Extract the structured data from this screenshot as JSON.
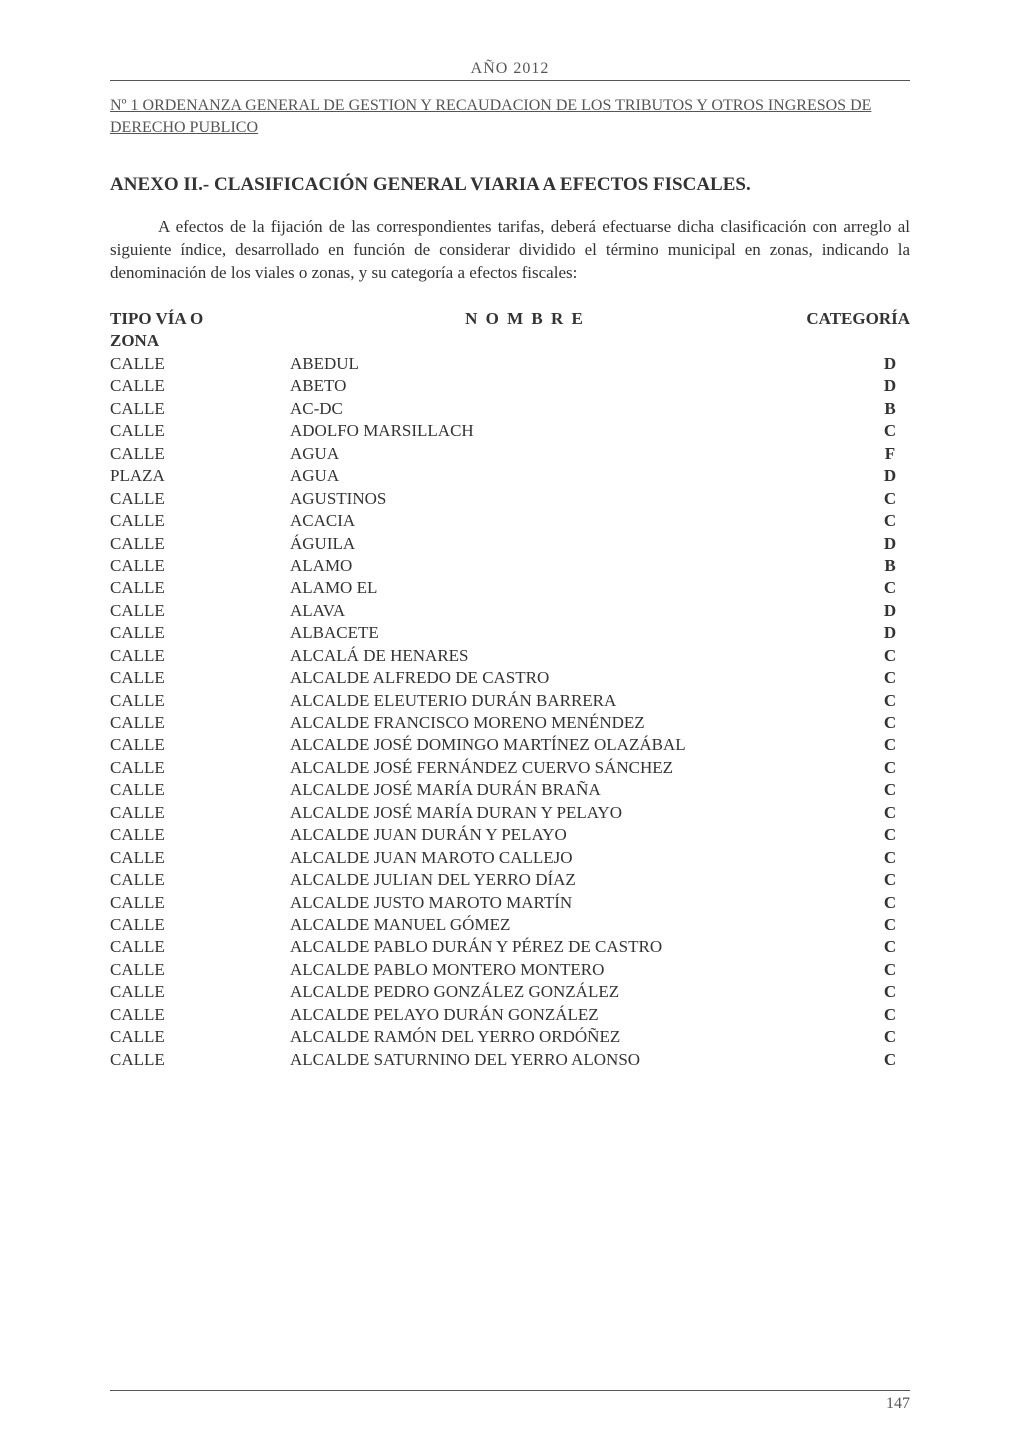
{
  "document": {
    "year_line": "AÑO 2012",
    "ordinance_header": "Nº 1    ORDENANZA GENERAL DE GESTION Y RECAUDACION DE LOS TRIBUTOS Y OTROS INGRESOS DE DERECHO PUBLICO",
    "annex_title": "ANEXO II.- CLASIFICACIÓN GENERAL VIARIA A EFECTOS FISCALES.",
    "intro_text": "A efectos de la fijación de las correspondientes tarifas, deberá efectuarse dicha clasificación con arreglo al siguiente índice, desarrollado en función de considerar dividido el término municipal en zonas, indicando la denominación de los viales o zonas, y su categoría a efectos fiscales:",
    "headers": {
      "tipo": "TIPO VÍA O",
      "zona": "ZONA",
      "nombre": "N O M B R E",
      "categoria": "CATEGORÍA"
    },
    "rows": [
      {
        "tipo": "CALLE",
        "nombre": "ABEDUL",
        "cat": "D"
      },
      {
        "tipo": "CALLE",
        "nombre": "ABETO",
        "cat": "D"
      },
      {
        "tipo": "CALLE",
        "nombre": "AC-DC",
        "cat": "B"
      },
      {
        "tipo": "CALLE",
        "nombre": "ADOLFO MARSILLACH",
        "cat": "C"
      },
      {
        "tipo": "CALLE",
        "nombre": "AGUA",
        "cat": "F"
      },
      {
        "tipo": "PLAZA",
        "nombre": "AGUA",
        "cat": "D"
      },
      {
        "tipo": "CALLE",
        "nombre": "AGUSTINOS",
        "cat": "C"
      },
      {
        "tipo": "CALLE",
        "nombre": "ACACIA",
        "cat": "C"
      },
      {
        "tipo": "CALLE",
        "nombre": "ÁGUILA",
        "cat": "D"
      },
      {
        "tipo": "CALLE",
        "nombre": "ALAMO",
        "cat": "B"
      },
      {
        "tipo": "CALLE",
        "nombre": "ALAMO EL",
        "cat": "C"
      },
      {
        "tipo": "CALLE",
        "nombre": "ALAVA",
        "cat": "D"
      },
      {
        "tipo": "CALLE",
        "nombre": "ALBACETE",
        "cat": "D"
      },
      {
        "tipo": "CALLE",
        "nombre": "ALCALÁ DE HENARES",
        "cat": "C"
      },
      {
        "tipo": "CALLE",
        "nombre": "ALCALDE ALFREDO DE CASTRO",
        "cat": "C"
      },
      {
        "tipo": "CALLE",
        "nombre": "ALCALDE ELEUTERIO DURÁN BARRERA",
        "cat": "C"
      },
      {
        "tipo": "CALLE",
        "nombre": "ALCALDE FRANCISCO MORENO MENÉNDEZ",
        "cat": "C"
      },
      {
        "tipo": "CALLE",
        "nombre": "ALCALDE JOSÉ DOMINGO MARTÍNEZ OLAZÁBAL",
        "cat": "C"
      },
      {
        "tipo": "CALLE",
        "nombre": "ALCALDE JOSÉ FERNÁNDEZ CUERVO SÁNCHEZ",
        "cat": "C"
      },
      {
        "tipo": "CALLE",
        "nombre": "ALCALDE JOSÉ MARÍA DURÁN BRAÑA",
        "cat": "C"
      },
      {
        "tipo": "CALLE",
        "nombre": "ALCALDE JOSÉ MARÍA DURAN Y PELAYO",
        "cat": "C"
      },
      {
        "tipo": "CALLE",
        "nombre": "ALCALDE JUAN DURÁN Y PELAYO",
        "cat": "C"
      },
      {
        "tipo": "CALLE",
        "nombre": "ALCALDE JUAN MAROTO CALLEJO",
        "cat": "C"
      },
      {
        "tipo": "CALLE",
        "nombre": "ALCALDE JULIAN DEL YERRO DÍAZ",
        "cat": "C"
      },
      {
        "tipo": "CALLE",
        "nombre": "ALCALDE JUSTO MAROTO MARTÍN",
        "cat": "C"
      },
      {
        "tipo": "CALLE",
        "nombre": "ALCALDE MANUEL GÓMEZ",
        "cat": "C"
      },
      {
        "tipo": "CALLE",
        "nombre": "ALCALDE PABLO DURÁN Y PÉREZ DE CASTRO",
        "cat": "C"
      },
      {
        "tipo": "CALLE",
        "nombre": "ALCALDE PABLO MONTERO MONTERO",
        "cat": "C"
      },
      {
        "tipo": "CALLE",
        "nombre": "ALCALDE PEDRO GONZÁLEZ GONZÁLEZ",
        "cat": "C"
      },
      {
        "tipo": "CALLE",
        "nombre": "ALCALDE PELAYO DURÁN GONZÁLEZ",
        "cat": "C"
      },
      {
        "tipo": "CALLE",
        "nombre": "ALCALDE RAMÓN DEL YERRO ORDÓÑEZ",
        "cat": "C"
      },
      {
        "tipo": "CALLE",
        "nombre": "ALCALDE SATURNINO DEL YERRO ALONSO",
        "cat": "C"
      }
    ],
    "page_number": "147"
  },
  "colors": {
    "page_bg": "#ffffff",
    "text_primary": "#333333",
    "text_muted": "#555555",
    "rule": "#555555"
  },
  "typography": {
    "base_family": "Times New Roman",
    "body_pt": 17,
    "title_pt": 19,
    "header_pt": 16
  }
}
